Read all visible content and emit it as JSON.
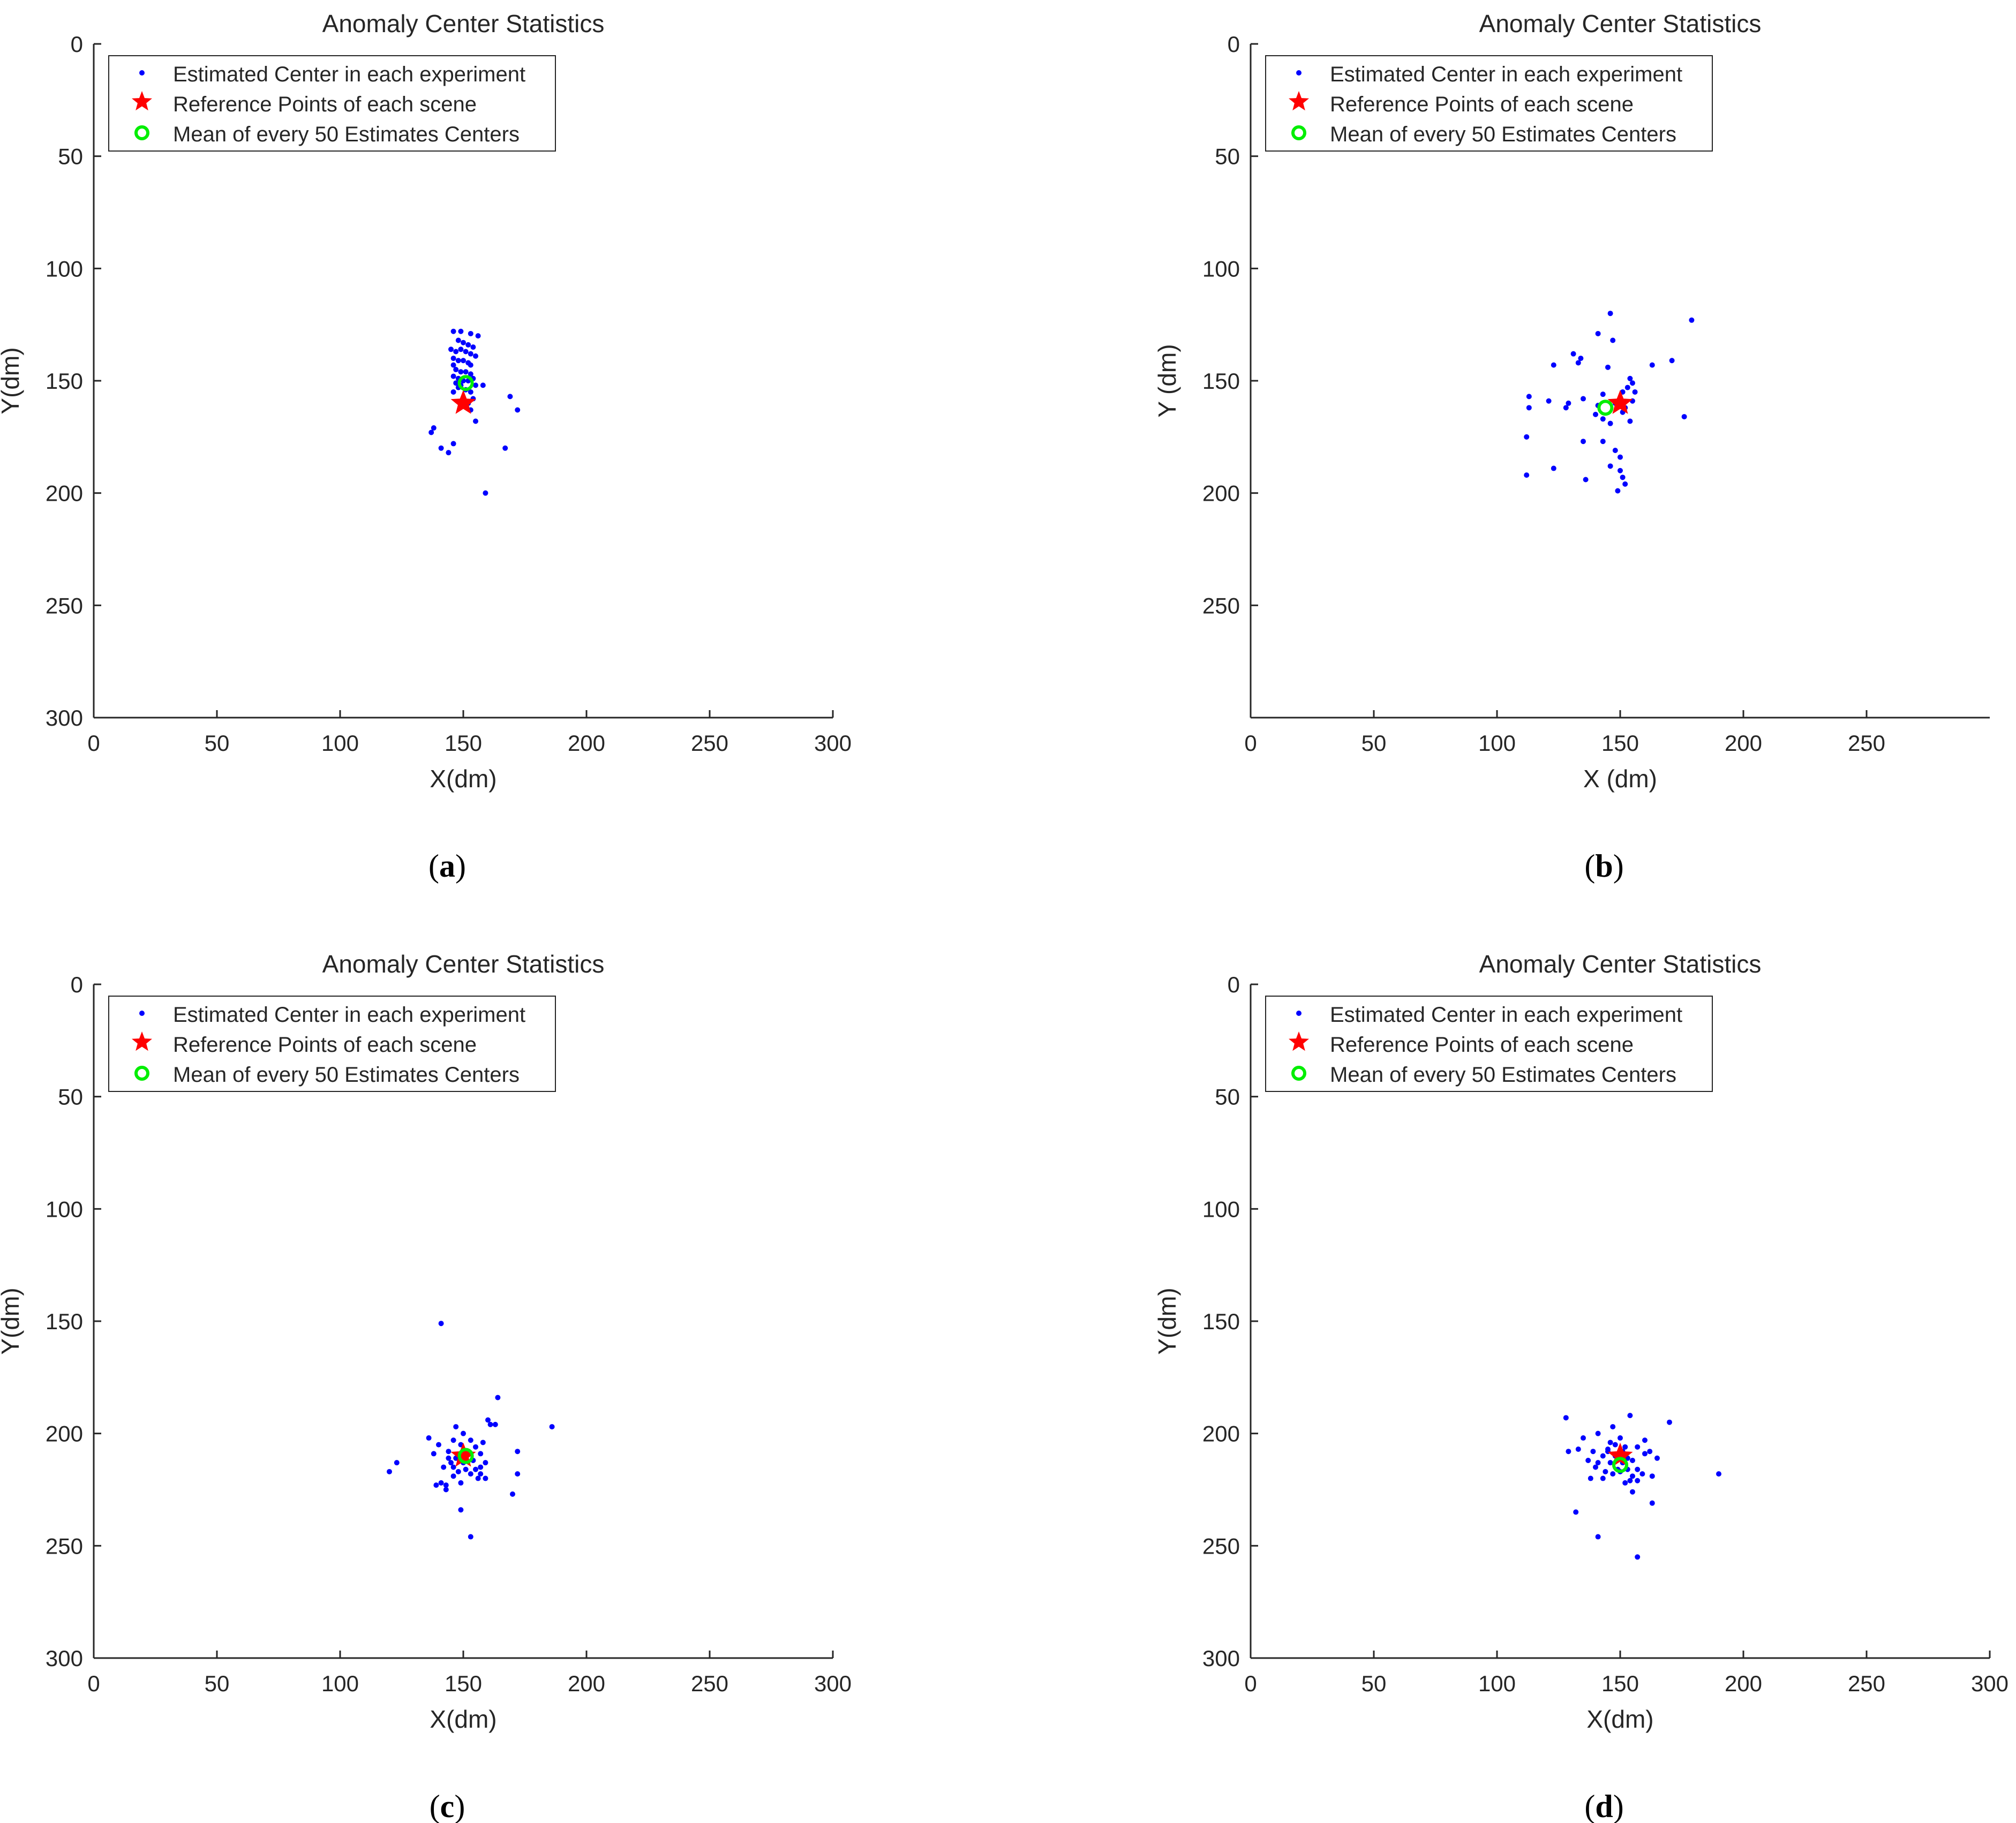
{
  "labels": {
    "title": "Anomaly Center Statistics",
    "legend_estimated": "Estimated Center in each experiment",
    "legend_reference": "Reference Points of each scene",
    "legend_mean": "Mean of every 50 Estimates Centers"
  },
  "colors": {
    "estimate": "#0000ff",
    "reference": "#ff0000",
    "mean": "#00ee00",
    "axis": "#262626"
  },
  "chart_data": [
    {
      "panel": "(a)",
      "sublabel_letter": "a",
      "type": "scatter",
      "title": "Anomaly Center Statistics",
      "xlabel": "X(dm)",
      "ylabel": "Y(dm)",
      "xlim": [
        0,
        300
      ],
      "ylim": [
        0,
        300
      ],
      "y_reversed": true,
      "xticks": [
        0,
        50,
        100,
        150,
        200,
        250,
        300
      ],
      "yticks": [
        0,
        50,
        100,
        150,
        200,
        250,
        300
      ],
      "legend": [
        "Estimated Center in each experiment",
        "Reference Points of each scene",
        "Mean of every 50 Estimates Centers"
      ],
      "legend_position": "top-left",
      "reference": [
        150,
        160
      ],
      "mean": [
        151,
        151
      ],
      "points": [
        [
          146,
          128
        ],
        [
          149,
          128
        ],
        [
          153,
          129
        ],
        [
          156,
          130
        ],
        [
          148,
          132
        ],
        [
          150,
          133
        ],
        [
          152,
          134
        ],
        [
          154,
          135
        ],
        [
          145,
          136
        ],
        [
          147,
          137
        ],
        [
          149,
          136
        ],
        [
          151,
          137
        ],
        [
          153,
          138
        ],
        [
          155,
          139
        ],
        [
          146,
          140
        ],
        [
          148,
          141
        ],
        [
          150,
          141
        ],
        [
          152,
          142
        ],
        [
          146,
          143
        ],
        [
          153,
          143
        ],
        [
          147,
          145
        ],
        [
          149,
          146
        ],
        [
          151,
          146
        ],
        [
          153,
          147
        ],
        [
          146,
          148
        ],
        [
          148,
          149
        ],
        [
          150,
          150
        ],
        [
          152,
          150
        ],
        [
          154,
          149
        ],
        [
          147,
          151
        ],
        [
          149,
          152
        ],
        [
          155,
          152
        ],
        [
          158,
          152
        ],
        [
          148,
          153
        ],
        [
          151,
          154
        ],
        [
          153,
          155
        ],
        [
          146,
          155
        ],
        [
          154,
          158
        ],
        [
          152,
          160
        ],
        [
          149,
          161
        ],
        [
          153,
          163
        ],
        [
          169,
          157
        ],
        [
          172,
          163
        ],
        [
          155,
          168
        ],
        [
          138,
          171
        ],
        [
          137,
          173
        ],
        [
          167,
          180
        ],
        [
          146,
          178
        ],
        [
          141,
          180
        ],
        [
          144,
          182
        ],
        [
          159,
          200
        ]
      ]
    },
    {
      "panel": "(b)",
      "sublabel_letter": "b",
      "type": "scatter",
      "title": "Anomaly Center Statistics",
      "xlabel": "X (dm)",
      "ylabel": "Y (dm)",
      "xlim": [
        0,
        300
      ],
      "ylim": [
        0,
        300
      ],
      "y_reversed": true,
      "xticks": [
        0,
        50,
        100,
        150,
        200,
        250
      ],
      "yticks": [
        0,
        50,
        100,
        150,
        200,
        250
      ],
      "legend": [
        "Estimated Center in each experiment",
        "Reference Points of each scene",
        "Mean of every 50 Estimates Centers"
      ],
      "legend_position": "top-left",
      "reference": [
        150,
        160
      ],
      "mean": [
        144,
        162
      ],
      "points": [
        [
          146,
          120
        ],
        [
          179,
          123
        ],
        [
          141,
          129
        ],
        [
          147,
          132
        ],
        [
          131,
          138
        ],
        [
          134,
          140
        ],
        [
          133,
          142
        ],
        [
          171,
          141
        ],
        [
          123,
          143
        ],
        [
          145,
          144
        ],
        [
          163,
          143
        ],
        [
          154,
          149
        ],
        [
          155,
          151
        ],
        [
          153,
          153
        ],
        [
          151,
          155
        ],
        [
          156,
          155
        ],
        [
          113,
          157
        ],
        [
          135,
          158
        ],
        [
          128,
          162
        ],
        [
          143,
          156
        ],
        [
          152,
          162
        ],
        [
          148,
          160
        ],
        [
          151,
          164
        ],
        [
          140,
          165
        ],
        [
          121,
          159
        ],
        [
          113,
          162
        ],
        [
          154,
          168
        ],
        [
          176,
          166
        ],
        [
          146,
          169
        ],
        [
          143,
          167
        ],
        [
          112,
          175
        ],
        [
          135,
          177
        ],
        [
          143,
          177
        ],
        [
          148,
          181
        ],
        [
          150,
          184
        ],
        [
          146,
          188
        ],
        [
          123,
          189
        ],
        [
          150,
          190
        ],
        [
          151,
          193
        ],
        [
          112,
          192
        ],
        [
          136,
          194
        ],
        [
          152,
          196
        ],
        [
          149,
          199
        ],
        [
          141,
          161
        ],
        [
          155,
          159
        ],
        [
          129,
          160
        ]
      ]
    },
    {
      "panel": "(c)",
      "sublabel_letter": "c",
      "type": "scatter",
      "title": "Anomaly Center Statistics",
      "xlabel": "X(dm)",
      "ylabel": "Y(dm)",
      "xlim": [
        0,
        300
      ],
      "ylim": [
        0,
        300
      ],
      "y_reversed": true,
      "xticks": [
        0,
        50,
        100,
        150,
        200,
        250,
        300
      ],
      "yticks": [
        0,
        50,
        100,
        150,
        200,
        250,
        300
      ],
      "legend": [
        "Estimated Center in each experiment",
        "Reference Points of each scene",
        "Mean of every 50 Estimates Centers"
      ],
      "legend_position": "top-left",
      "reference": [
        150,
        210
      ],
      "mean": [
        151,
        210
      ],
      "points": [
        [
          141,
          151
        ],
        [
          164,
          184
        ],
        [
          186,
          197
        ],
        [
          160,
          194
        ],
        [
          161,
          196
        ],
        [
          163,
          196
        ],
        [
          147,
          197
        ],
        [
          150,
          200
        ],
        [
          136,
          202
        ],
        [
          146,
          203
        ],
        [
          153,
          203
        ],
        [
          158,
          204
        ],
        [
          140,
          205
        ],
        [
          149,
          205
        ],
        [
          155,
          206
        ],
        [
          172,
          208
        ],
        [
          138,
          209
        ],
        [
          144,
          208
        ],
        [
          152,
          208
        ],
        [
          157,
          209
        ],
        [
          147,
          211
        ],
        [
          145,
          213
        ],
        [
          150,
          213
        ],
        [
          154,
          212
        ],
        [
          123,
          213
        ],
        [
          159,
          213
        ],
        [
          146,
          215
        ],
        [
          151,
          216
        ],
        [
          155,
          216
        ],
        [
          142,
          215
        ],
        [
          148,
          217
        ],
        [
          153,
          218
        ],
        [
          120,
          217
        ],
        [
          157,
          218
        ],
        [
          146,
          219
        ],
        [
          159,
          220
        ],
        [
          156,
          220
        ],
        [
          172,
          218
        ],
        [
          141,
          222
        ],
        [
          143,
          223
        ],
        [
          149,
          222
        ],
        [
          139,
          223
        ],
        [
          143,
          225
        ],
        [
          170,
          227
        ],
        [
          149,
          234
        ],
        [
          153,
          246
        ],
        [
          157,
          215
        ],
        [
          144,
          211
        ]
      ]
    },
    {
      "panel": "(d)",
      "sublabel_letter": "d",
      "type": "scatter",
      "title": "Anomaly Center Statistics",
      "xlabel": "X(dm)",
      "ylabel": "Y(dm)",
      "xlim": [
        0,
        300
      ],
      "ylim": [
        0,
        300
      ],
      "y_reversed": true,
      "xticks": [
        0,
        50,
        100,
        150,
        200,
        250,
        300
      ],
      "yticks": [
        0,
        50,
        100,
        150,
        200,
        250,
        300
      ],
      "legend": [
        "Estimated Center in each experiment",
        "Reference Points of each scene",
        "Mean of every 50 Estimates Centers"
      ],
      "legend_position": "top-left",
      "reference": [
        150,
        210
      ],
      "mean": [
        150,
        214
      ],
      "points": [
        [
          154,
          192
        ],
        [
          128,
          193
        ],
        [
          170,
          195
        ],
        [
          147,
          197
        ],
        [
          135,
          202
        ],
        [
          141,
          200
        ],
        [
          150,
          202
        ],
        [
          160,
          203
        ],
        [
          146,
          204
        ],
        [
          148,
          205
        ],
        [
          152,
          206
        ],
        [
          157,
          206
        ],
        [
          133,
          207
        ],
        [
          139,
          208
        ],
        [
          145,
          208
        ],
        [
          151,
          208
        ],
        [
          162,
          208
        ],
        [
          160,
          209
        ],
        [
          129,
          208
        ],
        [
          143,
          210
        ],
        [
          148,
          210
        ],
        [
          153,
          211
        ],
        [
          165,
          211
        ],
        [
          137,
          212
        ],
        [
          141,
          213
        ],
        [
          146,
          213
        ],
        [
          151,
          213
        ],
        [
          155,
          212
        ],
        [
          140,
          215
        ],
        [
          149,
          216
        ],
        [
          153,
          216
        ],
        [
          157,
          216
        ],
        [
          144,
          217
        ],
        [
          150,
          217
        ],
        [
          147,
          218
        ],
        [
          155,
          219
        ],
        [
          159,
          218
        ],
        [
          163,
          219
        ],
        [
          138,
          220
        ],
        [
          143,
          220
        ],
        [
          154,
          221
        ],
        [
          190,
          218
        ],
        [
          157,
          221
        ],
        [
          152,
          222
        ],
        [
          155,
          226
        ],
        [
          163,
          231
        ],
        [
          132,
          235
        ],
        [
          141,
          246
        ],
        [
          157,
          255
        ],
        [
          145,
          207
        ]
      ]
    }
  ]
}
